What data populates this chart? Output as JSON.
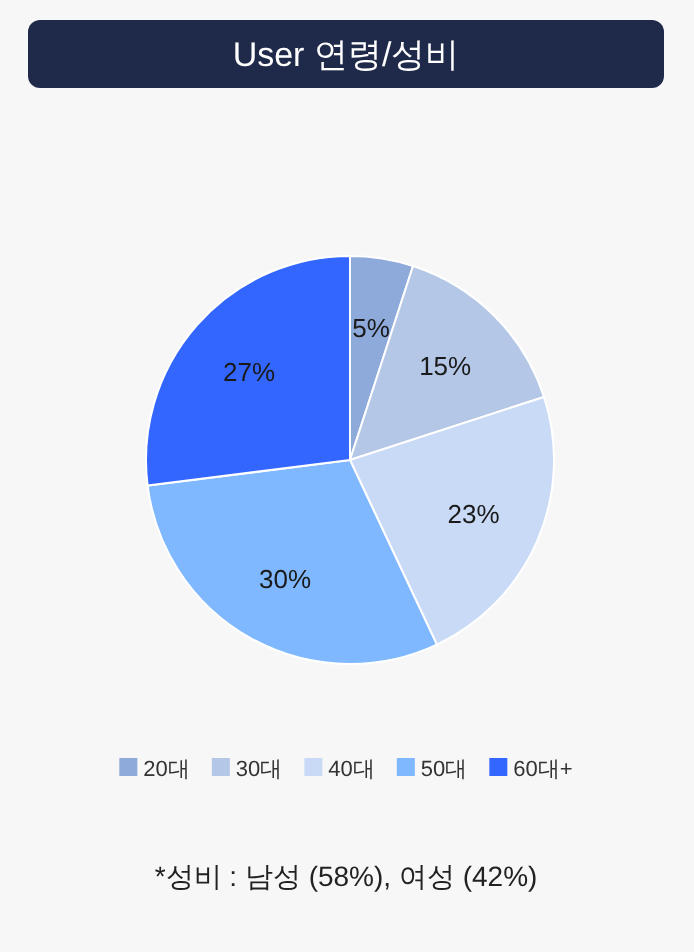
{
  "chart_data": {
    "type": "pie",
    "title": "User 연령/성비",
    "categories": [
      "20대",
      "30대",
      "40대",
      "50대",
      "60대+"
    ],
    "values": [
      5,
      15,
      23,
      30,
      27
    ],
    "colors": [
      "#8eaadb",
      "#b4c7e7",
      "#c9daf6",
      "#7fb8ff",
      "#3366ff"
    ],
    "value_labels": [
      "5%",
      "15%",
      "23%",
      "30%",
      "27%"
    ],
    "legend": "bottom",
    "annotations": [
      "*성비 : 남성 (58%), 여성 (42%)"
    ]
  }
}
